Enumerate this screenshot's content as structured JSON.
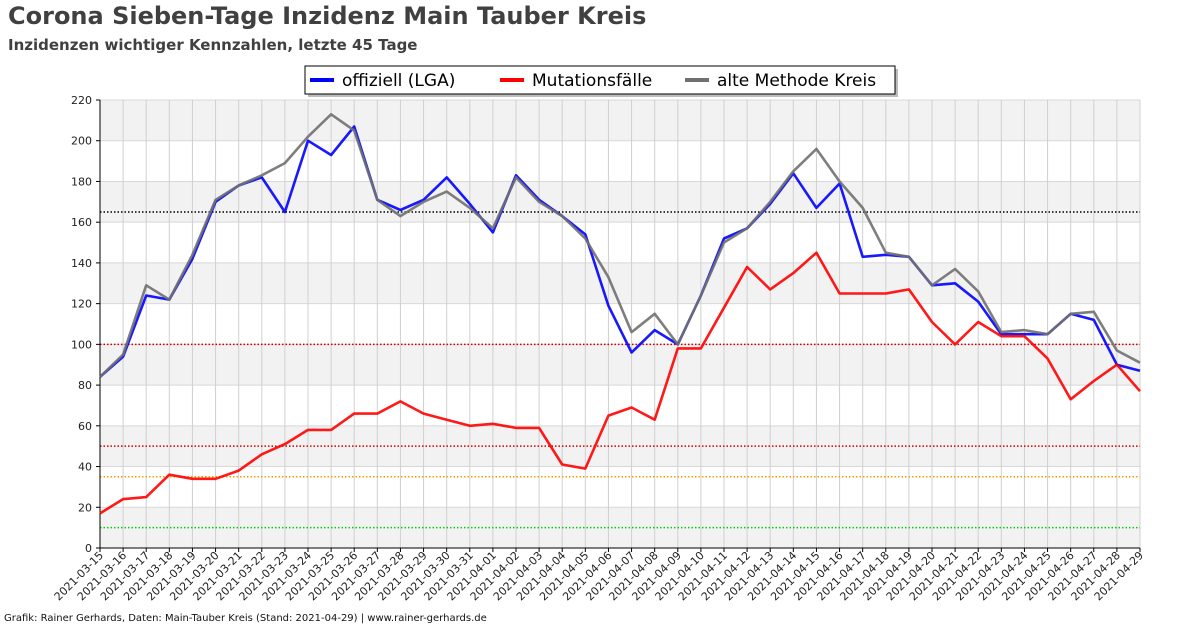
{
  "title": "Corona Sieben-Tage Inzidenz Main Tauber Kreis",
  "subtitle": "Inzidenzen wichtiger Kennzahlen, letzte 45 Tage",
  "footer": "Grafik: Rainer Gerhards, Daten: Main-Tauber Kreis (Stand: 2021-04-29) | www.rainer-gerhards.de",
  "chart_data": {
    "type": "line",
    "ylim": [
      0,
      220
    ],
    "yticks": [
      0,
      20,
      40,
      60,
      80,
      100,
      120,
      140,
      160,
      180,
      200,
      220
    ],
    "grid": true,
    "legend_position": "top-center",
    "categories": [
      "2021-03-15",
      "2021-03-16",
      "2021-03-17",
      "2021-03-18",
      "2021-03-19",
      "2021-03-20",
      "2021-03-21",
      "2021-03-22",
      "2021-03-23",
      "2021-03-24",
      "2021-03-25",
      "2021-03-26",
      "2021-03-27",
      "2021-03-28",
      "2021-03-29",
      "2021-03-30",
      "2021-03-31",
      "2021-04-01",
      "2021-04-02",
      "2021-04-03",
      "2021-04-04",
      "2021-04-05",
      "2021-04-06",
      "2021-04-07",
      "2021-04-08",
      "2021-04-09",
      "2021-04-10",
      "2021-04-11",
      "2021-04-12",
      "2021-04-13",
      "2021-04-14",
      "2021-04-15",
      "2021-04-16",
      "2021-04-17",
      "2021-04-18",
      "2021-04-19",
      "2021-04-20",
      "2021-04-21",
      "2021-04-22",
      "2021-04-23",
      "2021-04-24",
      "2021-04-25",
      "2021-04-26",
      "2021-04-27",
      "2021-04-28",
      "2021-04-29"
    ],
    "series": [
      {
        "name": "offiziell (LGA)",
        "color": "#0000ff",
        "values": [
          84,
          94,
          124,
          122,
          142,
          170,
          178,
          182,
          165,
          200,
          193,
          207,
          171,
          166,
          171,
          182,
          169,
          155,
          183,
          171,
          163,
          154,
          119,
          96,
          107,
          100,
          124,
          152,
          157,
          169,
          184,
          167,
          179,
          143,
          144,
          143,
          129,
          130,
          121,
          105,
          105,
          105,
          115,
          112,
          90,
          87
        ]
      },
      {
        "name": "Mutationsfälle",
        "color": "#ff0000",
        "values": [
          17,
          24,
          25,
          36,
          34,
          34,
          38,
          46,
          51,
          58,
          58,
          66,
          66,
          72,
          66,
          63,
          60,
          61,
          59,
          59,
          41,
          39,
          65,
          69,
          63,
          98,
          98,
          118,
          138,
          127,
          135,
          145,
          125,
          125,
          125,
          127,
          111,
          100,
          111,
          104,
          104,
          93,
          73,
          82,
          90,
          77
        ]
      },
      {
        "name": "alte Methode Kreis",
        "color": "#707070",
        "values": [
          84,
          95,
          129,
          122,
          144,
          171,
          178,
          183,
          189,
          202,
          213,
          205,
          171,
          163,
          170,
          175,
          167,
          157,
          182,
          170,
          163,
          152,
          133,
          106,
          115,
          100,
          124,
          150,
          157,
          170,
          185,
          196,
          180,
          167,
          145,
          143,
          129,
          137,
          126,
          106,
          107,
          105,
          115,
          116,
          97,
          91
        ]
      }
    ],
    "reference_lines": [
      {
        "value": 165,
        "color": "#000000"
      },
      {
        "value": 100,
        "color": "#cc0000"
      },
      {
        "value": 50,
        "color": "#cc0000"
      },
      {
        "value": 35,
        "color": "#ff9900"
      },
      {
        "value": 10,
        "color": "#00cc00"
      }
    ]
  }
}
